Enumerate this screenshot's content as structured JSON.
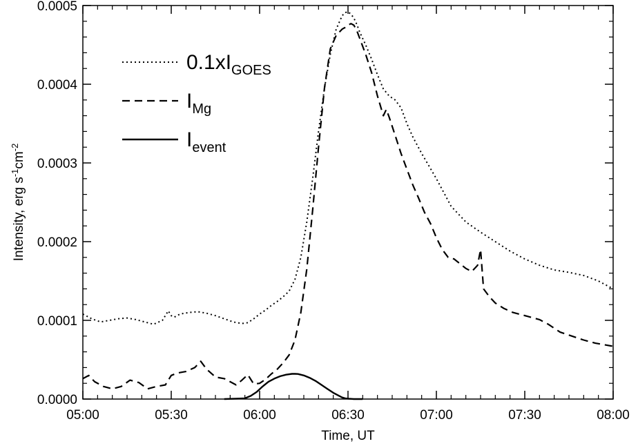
{
  "chart_data": {
    "type": "line",
    "title": "",
    "xlabel": "Time, UT",
    "ylabel": {
      "base": "Intensity, erg s",
      "exp1": "-1",
      "mid": "cm",
      "exp2": "-2"
    },
    "x_unit": "minutes after 05:00 UT",
    "xlim": [
      0,
      180
    ],
    "ylim": [
      0,
      0.0005
    ],
    "x_ticks": [
      {
        "x": 0,
        "label": "05:00"
      },
      {
        "x": 30,
        "label": "05:30"
      },
      {
        "x": 60,
        "label": "06:00"
      },
      {
        "x": 90,
        "label": "06:30"
      },
      {
        "x": 120,
        "label": "07:00"
      },
      {
        "x": 150,
        "label": "07:30"
      },
      {
        "x": 180,
        "label": "08:00"
      }
    ],
    "y_ticks": [
      {
        "y": 0.0,
        "label": "0.0000"
      },
      {
        "y": 0.0001,
        "label": "0.0001"
      },
      {
        "y": 0.0002,
        "label": "0.0002"
      },
      {
        "y": 0.0003,
        "label": "0.0003"
      },
      {
        "y": 0.0004,
        "label": "0.0004"
      },
      {
        "y": 0.0005,
        "label": "0.0005"
      }
    ],
    "grid": false,
    "legend_position": "top-left",
    "series": [
      {
        "name": "0.1xI_GOES",
        "legend": {
          "main": "0.1xI",
          "sub": "GOES"
        },
        "style": "dotted",
        "color": "#000000",
        "x": [
          0,
          3,
          6,
          9,
          12,
          15,
          18,
          21,
          24,
          27,
          29,
          30,
          31,
          33,
          36,
          39,
          42,
          45,
          48,
          51,
          54,
          56,
          58,
          60,
          62,
          64,
          66,
          68,
          70,
          72,
          74,
          76,
          78,
          80,
          82,
          84,
          86,
          88,
          89,
          90,
          91,
          92,
          93,
          94,
          96,
          98,
          100,
          102,
          104,
          106,
          108,
          110,
          112,
          115,
          120,
          125,
          130,
          135,
          140,
          145,
          150,
          155,
          160,
          165,
          170,
          175,
          180
        ],
        "y": [
          0.000108,
          0.000102,
          9.8e-05,
          0.0001,
          0.000102,
          0.000103,
          0.000101,
          9.8e-05,
          9.5e-05,
          0.0001,
          0.000112,
          0.000106,
          0.000104,
          0.000108,
          0.00011,
          0.000111,
          0.000109,
          0.000106,
          0.000102,
          9.8e-05,
          9.6e-05,
          9.7e-05,
          0.000102,
          0.000108,
          0.000113,
          0.000119,
          0.000124,
          0.00013,
          0.000137,
          0.000152,
          0.00018,
          0.000225,
          0.00028,
          0.00034,
          0.000395,
          0.000438,
          0.00047,
          0.000487,
          0.000491,
          0.000492,
          0.000489,
          0.000484,
          0.000476,
          0.000466,
          0.00045,
          0.000432,
          0.000412,
          0.000394,
          0.000385,
          0.00038,
          0.00037,
          0.00035,
          0.000333,
          0.000312,
          0.00028,
          0.000245,
          0.000225,
          0.000212,
          0.0002,
          0.000188,
          0.000178,
          0.00017,
          0.000164,
          0.000161,
          0.000157,
          0.00015,
          0.00014
        ]
      },
      {
        "name": "I_Mg",
        "legend": {
          "main": "I",
          "sub": "Mg"
        },
        "style": "dashed",
        "color": "#000000",
        "x": [
          0,
          2,
          4,
          7,
          10,
          13,
          16,
          19,
          22,
          25,
          28,
          30,
          32,
          35,
          38,
          40,
          42,
          45,
          48,
          50,
          52,
          54,
          56,
          58,
          60,
          62,
          64,
          66,
          68,
          70,
          72,
          74,
          76,
          78,
          80,
          82,
          84,
          86,
          88,
          89,
          90,
          91,
          92,
          93,
          94,
          96,
          98,
          100,
          102,
          103,
          104,
          106,
          108,
          110,
          112,
          114,
          116,
          118,
          120,
          122,
          124,
          126,
          128,
          130,
          132,
          134,
          135,
          136,
          138,
          140,
          143,
          146,
          149,
          152,
          155,
          158,
          162,
          166,
          170,
          174,
          177,
          180
        ],
        "y": [
          2.6e-05,
          3e-05,
          2.2e-05,
          1.6e-05,
          1.3e-05,
          1.6e-05,
          2.4e-05,
          2.1e-05,
          1.3e-05,
          1.6e-05,
          1.8e-05,
          3e-05,
          3.3e-05,
          3.5e-05,
          4e-05,
          4.8e-05,
          3.8e-05,
          2.8e-05,
          2.6e-05,
          2.2e-05,
          1.8e-05,
          2.4e-05,
          3.1e-05,
          1.9e-05,
          2e-05,
          2.5e-05,
          3.2e-05,
          3.8e-05,
          4.6e-05,
          5.6e-05,
          7.5e-05,
          0.00011,
          0.000165,
          0.00024,
          0.00032,
          0.000395,
          0.000445,
          0.000462,
          0.00047,
          0.000472,
          0.000475,
          0.000477,
          0.000475,
          0.000468,
          0.000458,
          0.000438,
          0.000415,
          0.000385,
          0.00036,
          0.000368,
          0.000358,
          0.000335,
          0.000312,
          0.000292,
          0.000272,
          0.000255,
          0.000237,
          0.000223,
          0.000205,
          0.00019,
          0.00018,
          0.000178,
          0.000172,
          0.000166,
          0.000162,
          0.00017,
          0.00019,
          0.00014,
          0.00013,
          0.000122,
          0.000115,
          0.00011,
          0.000107,
          0.000104,
          0.000101,
          9.5e-05,
          8.5e-05,
          8e-05,
          7.5e-05,
          7.1e-05,
          6.9e-05,
          6.7e-05
        ]
      },
      {
        "name": "I_event",
        "legend": {
          "main": "I",
          "sub": "event"
        },
        "style": "solid",
        "color": "#000000",
        "x": [
          48,
          52,
          55,
          57,
          59,
          61,
          63,
          65,
          67,
          69,
          71,
          72,
          73,
          75,
          77,
          79,
          81,
          83,
          85,
          87,
          88,
          89,
          90,
          92,
          95
        ],
        "y": [
          0.0,
          5e-07,
          1e-06,
          4e-06,
          9e-06,
          1.6e-05,
          2.2e-05,
          2.6e-05,
          2.9e-05,
          3.1e-05,
          3.2e-05,
          3.2e-05,
          3.18e-05,
          3e-05,
          2.7e-05,
          2.3e-05,
          1.8e-05,
          1.3e-05,
          8e-06,
          4e-06,
          2e-06,
          1e-06,
          5e-07,
          0.0,
          0.0
        ]
      }
    ]
  }
}
